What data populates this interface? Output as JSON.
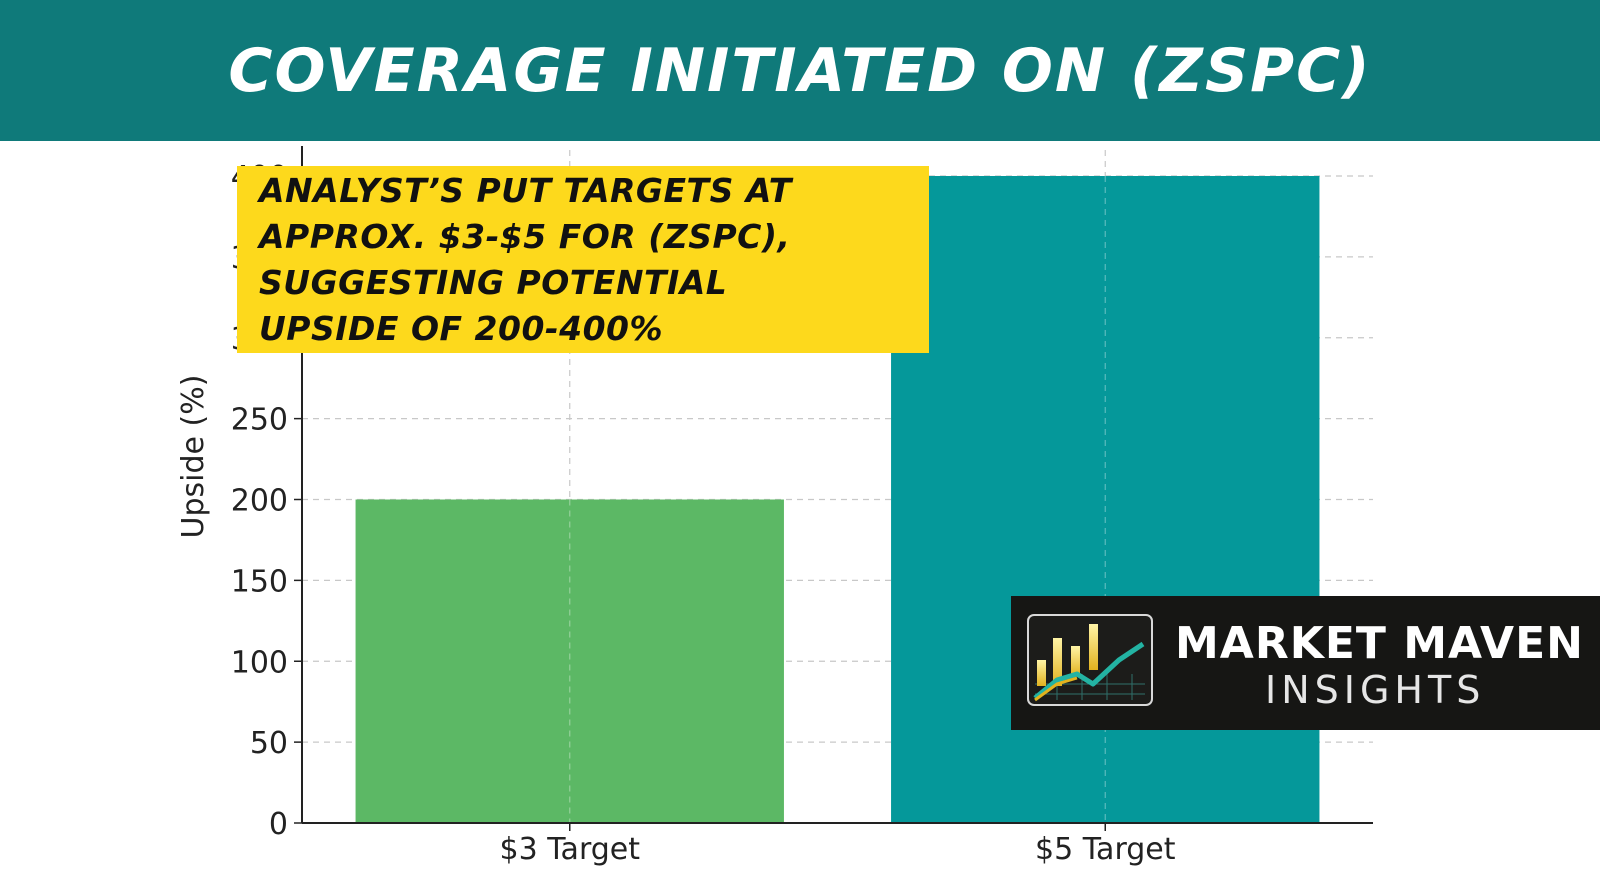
{
  "banner": {
    "title": "COVERAGE INITIATED ON (ZSPC)"
  },
  "callout": {
    "lines": [
      "ANALYST’S PUT TARGETS AT",
      "APPROX. $3-$5 FOR (ZSPC),",
      "SUGGESTING POTENTIAL",
      "UPSIDE OF 200-400%"
    ]
  },
  "logo": {
    "name": "MARKET MAVEN",
    "sub": "INSIGHTS",
    "icon": "bar-chart-logo-icon"
  },
  "colors": {
    "banner": "#0f7a7a",
    "callout": "#fdd91c",
    "bar1": "#5cb865",
    "bar2": "#05989a",
    "logo_bg": "#161614"
  },
  "chart_data": {
    "type": "bar",
    "categories": [
      "$3 Target",
      "$5 Target"
    ],
    "values": [
      200,
      400
    ],
    "ylabel": "Upside (%)",
    "xlabel": "",
    "ylim": [
      0,
      400
    ],
    "yticks": [
      0,
      50,
      100,
      150,
      200,
      250,
      300,
      350,
      400
    ],
    "grid": true
  }
}
